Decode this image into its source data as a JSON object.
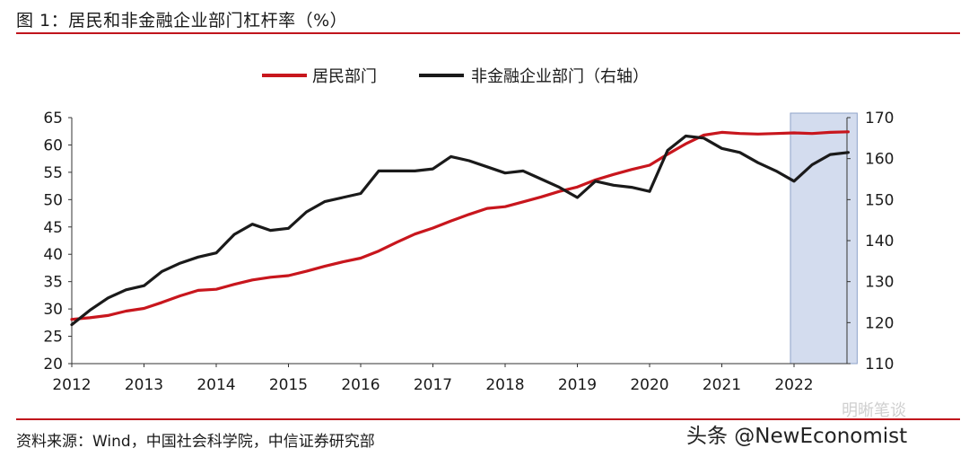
{
  "header": {
    "title": "图 1：居民和非金融企业部门杠杆率（%）"
  },
  "footer": {
    "source": "资料来源：Wind，中国社会科学院，中信证券研究部"
  },
  "watermark": {
    "account_name": "明晰笔谈",
    "handle": "头条 @NewEconomist"
  },
  "colors": {
    "accent_rule": "#c0141c",
    "household": "#c8161d",
    "corporate": "#1a1a1a",
    "forecast_band": "#d3dcee"
  },
  "chart_data": {
    "type": "line",
    "legend": [
      {
        "label": "居民部门",
        "color": "#c8161d"
      },
      {
        "label": "非金融企业部门（右轴）",
        "color": "#1a1a1a"
      }
    ],
    "legend_position": "top-center",
    "x_ticks": [
      "2012",
      "2013",
      "2014",
      "2015",
      "2016",
      "2017",
      "2018",
      "2019",
      "2020",
      "2021",
      "2022"
    ],
    "x_range": [
      2012.0,
      2022.9
    ],
    "y_left": {
      "range": [
        20,
        65
      ],
      "ticks": [
        "20",
        "25",
        "30",
        "35",
        "40",
        "45",
        "50",
        "55",
        "60",
        "65"
      ]
    },
    "y_right": {
      "range": [
        110,
        170
      ],
      "ticks": [
        "110",
        "120",
        "130",
        "140",
        "150",
        "160",
        "170"
      ]
    },
    "shaded_region": {
      "x_start": 2021.95,
      "x_end": 2022.75,
      "meaning": "forecast"
    },
    "series": [
      {
        "name": "居民部门",
        "axis": "left",
        "x": [
          2012.0,
          2012.25,
          2012.5,
          2012.75,
          2013.0,
          2013.25,
          2013.5,
          2013.75,
          2014.0,
          2014.25,
          2014.5,
          2014.75,
          2015.0,
          2015.25,
          2015.5,
          2015.75,
          2016.0,
          2016.25,
          2016.5,
          2016.75,
          2017.0,
          2017.25,
          2017.5,
          2017.75,
          2018.0,
          2018.25,
          2018.5,
          2018.75,
          2019.0,
          2019.25,
          2019.5,
          2019.75,
          2020.0,
          2020.25,
          2020.5,
          2020.75,
          2021.0,
          2021.25,
          2021.5,
          2021.75,
          2022.0,
          2022.25,
          2022.5,
          2022.75
        ],
        "values": [
          28.1,
          28.4,
          28.8,
          29.6,
          30.1,
          31.2,
          32.4,
          33.4,
          33.6,
          34.5,
          35.3,
          35.8,
          36.1,
          36.9,
          37.8,
          38.6,
          39.3,
          40.6,
          42.2,
          43.7,
          44.8,
          46.1,
          47.3,
          48.4,
          48.7,
          49.6,
          50.5,
          51.5,
          52.3,
          53.6,
          54.6,
          55.5,
          56.3,
          58.3,
          60.2,
          61.8,
          62.3,
          62.1,
          62.0,
          62.1,
          62.2,
          62.1,
          62.3,
          62.4
        ]
      },
      {
        "name": "非金融企业部门",
        "axis": "right",
        "x": [
          2012.0,
          2012.25,
          2012.5,
          2012.75,
          2013.0,
          2013.25,
          2013.5,
          2013.75,
          2014.0,
          2014.25,
          2014.5,
          2014.75,
          2015.0,
          2015.25,
          2015.5,
          2015.75,
          2016.0,
          2016.25,
          2016.5,
          2016.75,
          2017.0,
          2017.25,
          2017.5,
          2017.75,
          2018.0,
          2018.25,
          2018.5,
          2018.75,
          2019.0,
          2019.25,
          2019.5,
          2019.75,
          2020.0,
          2020.25,
          2020.5,
          2020.75,
          2021.0,
          2021.25,
          2021.5,
          2021.75,
          2022.0,
          2022.25,
          2022.5,
          2022.75
        ],
        "values": [
          119.5,
          123.0,
          126.0,
          128.0,
          129.0,
          132.5,
          134.5,
          136.0,
          137.0,
          141.5,
          144.0,
          142.5,
          143.0,
          147.0,
          149.5,
          150.5,
          151.5,
          157.0,
          157.0,
          157.0,
          157.5,
          160.5,
          159.5,
          158.0,
          156.5,
          157.0,
          155.0,
          153.0,
          150.5,
          154.5,
          153.5,
          153.0,
          152.0,
          162.0,
          165.5,
          165.0,
          162.5,
          161.5,
          159.0,
          157.0,
          154.5,
          158.5,
          161.0,
          161.5
        ]
      }
    ]
  }
}
